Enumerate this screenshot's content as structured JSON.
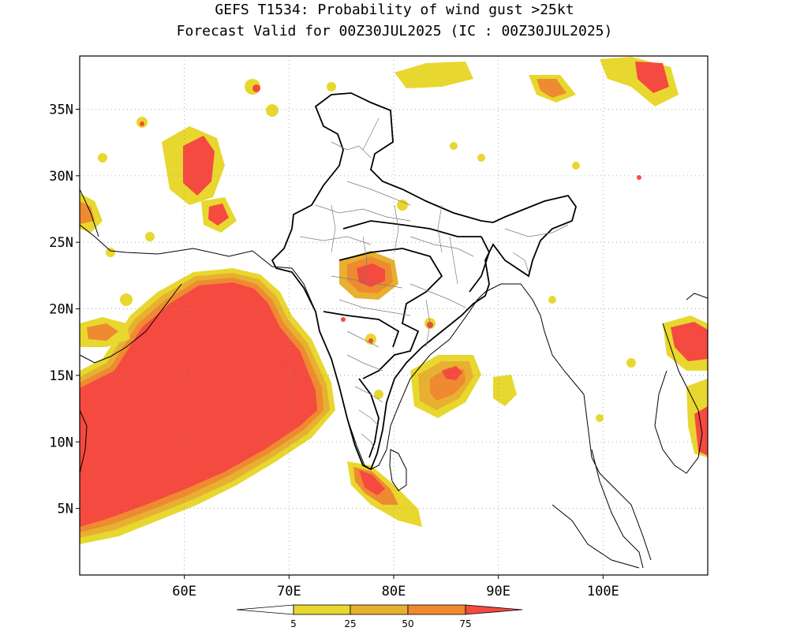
{
  "header": {
    "title_line1": "GEFS T1534: Probability of wind gust >25kt",
    "title_line2": "Forecast Valid for 00Z30JUL2025 (IC : 00Z30JUL2025)"
  },
  "map": {
    "lon_range": [
      50,
      110
    ],
    "lat_range": [
      0,
      39
    ],
    "lon_ticks": [
      {
        "value": 60,
        "label": "60E"
      },
      {
        "value": 70,
        "label": "70E"
      },
      {
        "value": 80,
        "label": "80E"
      },
      {
        "value": 90,
        "label": "90E"
      },
      {
        "value": 100,
        "label": "100E"
      }
    ],
    "lat_ticks": [
      {
        "value": 35,
        "label": "35N"
      },
      {
        "value": 30,
        "label": "30N"
      },
      {
        "value": 25,
        "label": "25N"
      },
      {
        "value": 20,
        "label": "20N"
      },
      {
        "value": 15,
        "label": "15N"
      },
      {
        "value": 10,
        "label": "10N"
      },
      {
        "value": 5,
        "label": "5N"
      }
    ],
    "grid": true
  },
  "colorbar": {
    "labels": [
      "5",
      "25",
      "50",
      "75"
    ],
    "colors": [
      "#e8d72e",
      "#e8b030",
      "#ee8a30",
      "#f44a40"
    ]
  },
  "colors": {
    "level1": "#e8d72e",
    "level2": "#e8b030",
    "level3": "#ee8a30",
    "level4": "#f44a40"
  }
}
